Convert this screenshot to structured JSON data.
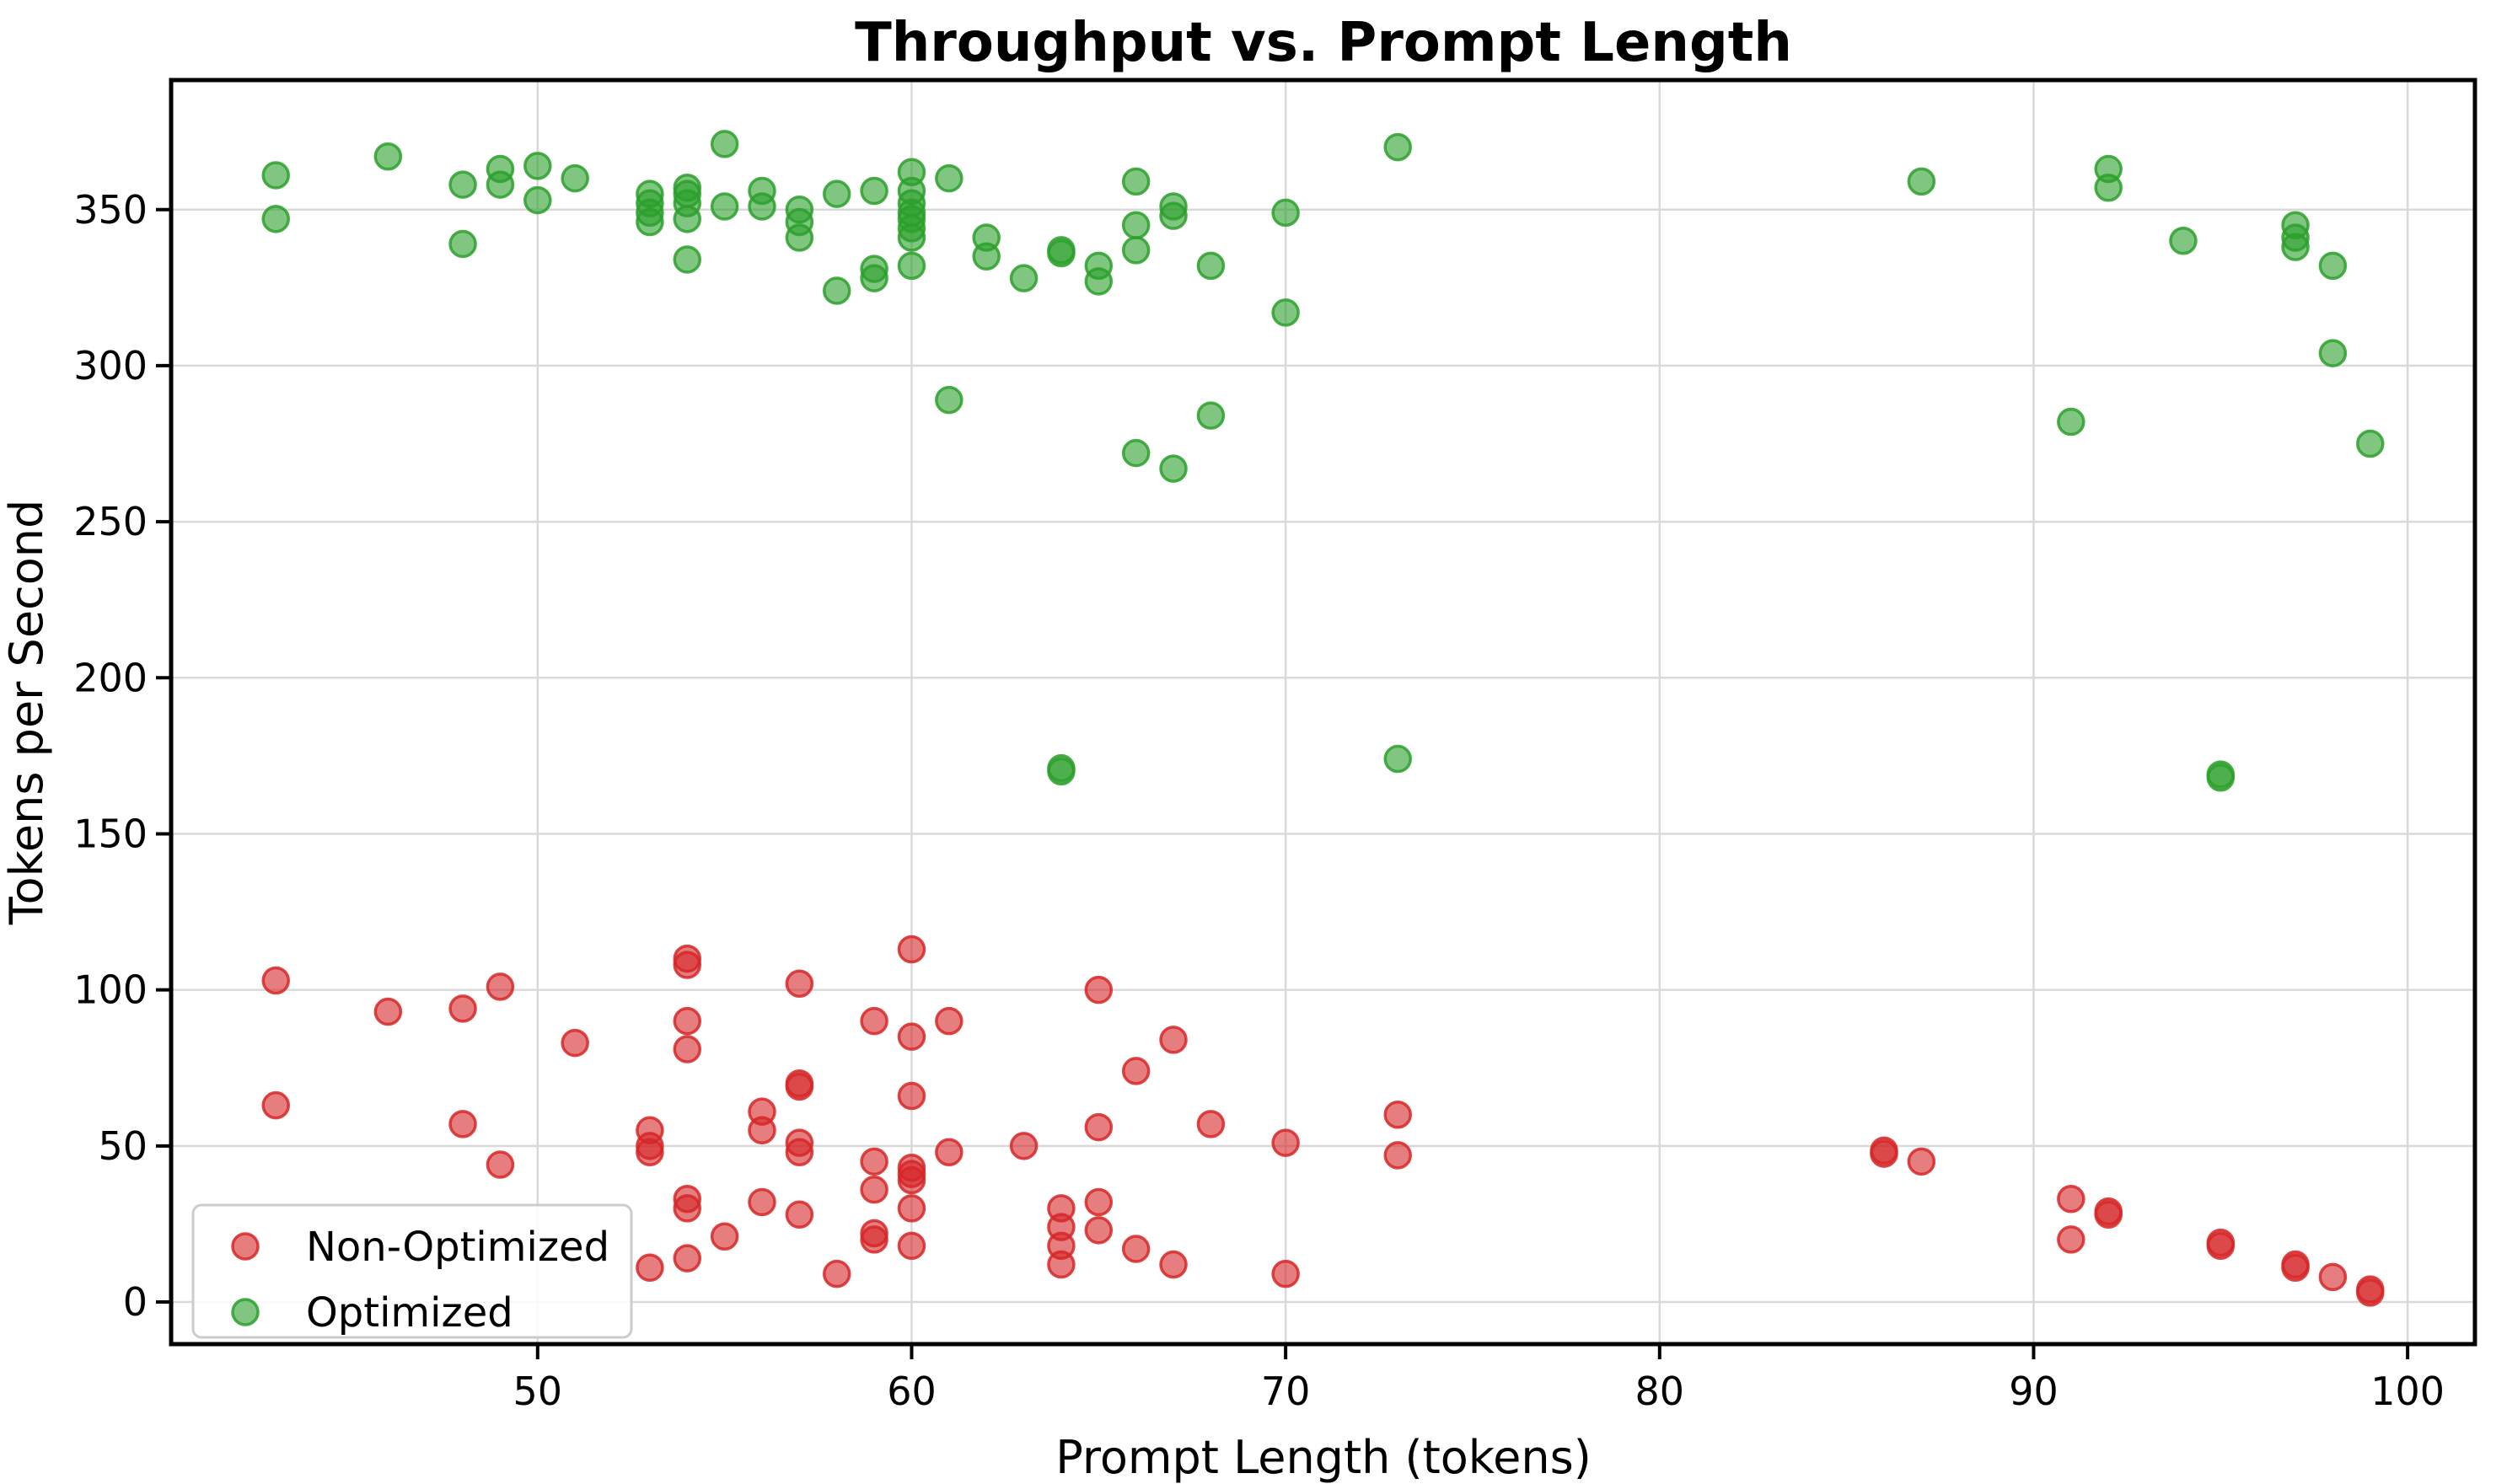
{
  "chart_data": {
    "type": "scatter",
    "title": "Throughput vs. Prompt Length",
    "xlabel": "Prompt Length (tokens)",
    "ylabel": "Tokens per Second",
    "xlim": [
      40.2,
      101.8
    ],
    "ylim": [
      -13.5,
      391.5
    ],
    "x_ticks": [
      50,
      60,
      70,
      80,
      90,
      100
    ],
    "y_ticks": [
      0,
      50,
      100,
      150,
      200,
      250,
      300,
      350
    ],
    "grid": true,
    "legend_position": "lower left",
    "series": [
      {
        "name": "Non-Optimized",
        "color": "#d62728",
        "points": [
          [
            43,
            103
          ],
          [
            43,
            63
          ],
          [
            46,
            93
          ],
          [
            48,
            94
          ],
          [
            48,
            57
          ],
          [
            49,
            101
          ],
          [
            49,
            44
          ],
          [
            51,
            83
          ],
          [
            53,
            55
          ],
          [
            53,
            50
          ],
          [
            53,
            48
          ],
          [
            53,
            11
          ],
          [
            54,
            110
          ],
          [
            54,
            108
          ],
          [
            54,
            90
          ],
          [
            54,
            81
          ],
          [
            54,
            33
          ],
          [
            54,
            30
          ],
          [
            54,
            14
          ],
          [
            55,
            21
          ],
          [
            56,
            61
          ],
          [
            56,
            55
          ],
          [
            56,
            32
          ],
          [
            57,
            102
          ],
          [
            57,
            70
          ],
          [
            57,
            69
          ],
          [
            57,
            51
          ],
          [
            57,
            48
          ],
          [
            57,
            28
          ],
          [
            58,
            9
          ],
          [
            59,
            90
          ],
          [
            59,
            45
          ],
          [
            59,
            36
          ],
          [
            59,
            22
          ],
          [
            59,
            20
          ],
          [
            60,
            113
          ],
          [
            60,
            85
          ],
          [
            60,
            66
          ],
          [
            60,
            43
          ],
          [
            60,
            41
          ],
          [
            60,
            39
          ],
          [
            60,
            30
          ],
          [
            60,
            18
          ],
          [
            61,
            90
          ],
          [
            61,
            48
          ],
          [
            63,
            50
          ],
          [
            64,
            30
          ],
          [
            64,
            24
          ],
          [
            64,
            18
          ],
          [
            64,
            12
          ],
          [
            65,
            100
          ],
          [
            65,
            56
          ],
          [
            65,
            32
          ],
          [
            65,
            23
          ],
          [
            66,
            74
          ],
          [
            66,
            17
          ],
          [
            67,
            84
          ],
          [
            67,
            12
          ],
          [
            68,
            57
          ],
          [
            70,
            51
          ],
          [
            70,
            9
          ],
          [
            73,
            60
          ],
          [
            73,
            47
          ],
          [
            86,
            48.5
          ],
          [
            86,
            47.5
          ],
          [
            87,
            45
          ],
          [
            91,
            33
          ],
          [
            91,
            20
          ],
          [
            92,
            29
          ],
          [
            92,
            28
          ],
          [
            95,
            19
          ],
          [
            95,
            18
          ],
          [
            97,
            12
          ],
          [
            97,
            11
          ],
          [
            98,
            8
          ],
          [
            99,
            4
          ],
          [
            99,
            3
          ]
        ]
      },
      {
        "name": "Optimized",
        "color": "#2ca02c",
        "points": [
          [
            43,
            361
          ],
          [
            43,
            347
          ],
          [
            46,
            367
          ],
          [
            48,
            358
          ],
          [
            48,
            339
          ],
          [
            49,
            363
          ],
          [
            49,
            358
          ],
          [
            50,
            364
          ],
          [
            50,
            353
          ],
          [
            51,
            360
          ],
          [
            53,
            355
          ],
          [
            53,
            352
          ],
          [
            53,
            349
          ],
          [
            53,
            346
          ],
          [
            54,
            357
          ],
          [
            54,
            355
          ],
          [
            54,
            352
          ],
          [
            54,
            347
          ],
          [
            54,
            334
          ],
          [
            55,
            371
          ],
          [
            55,
            351
          ],
          [
            56,
            356
          ],
          [
            56,
            351
          ],
          [
            57,
            350
          ],
          [
            57,
            346
          ],
          [
            57,
            341
          ],
          [
            58,
            355
          ],
          [
            58,
            324
          ],
          [
            59,
            356
          ],
          [
            59,
            331
          ],
          [
            59,
            328
          ],
          [
            60,
            362
          ],
          [
            60,
            356
          ],
          [
            60,
            352
          ],
          [
            60,
            349
          ],
          [
            60,
            347
          ],
          [
            60,
            344
          ],
          [
            60,
            341
          ],
          [
            60,
            332
          ],
          [
            61,
            360
          ],
          [
            61,
            289
          ],
          [
            62,
            341
          ],
          [
            62,
            335
          ],
          [
            63,
            328
          ],
          [
            64,
            337
          ],
          [
            64,
            336
          ],
          [
            64,
            171
          ],
          [
            64,
            170
          ],
          [
            65,
            332
          ],
          [
            65,
            327
          ],
          [
            66,
            359
          ],
          [
            66,
            345
          ],
          [
            66,
            337
          ],
          [
            66,
            272
          ],
          [
            67,
            351
          ],
          [
            67,
            348
          ],
          [
            67,
            267
          ],
          [
            68,
            332
          ],
          [
            68,
            284
          ],
          [
            70,
            349
          ],
          [
            70,
            317
          ],
          [
            73,
            370
          ],
          [
            73,
            174
          ],
          [
            87,
            359
          ],
          [
            91,
            282
          ],
          [
            92,
            363
          ],
          [
            92,
            357
          ],
          [
            94,
            340
          ],
          [
            95,
            168
          ],
          [
            95,
            169
          ],
          [
            97,
            345
          ],
          [
            97,
            341
          ],
          [
            97,
            338
          ],
          [
            98,
            332
          ],
          [
            98,
            304
          ],
          [
            99,
            275
          ]
        ]
      }
    ]
  },
  "legend": {
    "items": [
      {
        "label": "Non-Optimized",
        "color": "#d62728"
      },
      {
        "label": "Optimized",
        "color": "#2ca02c"
      }
    ]
  },
  "style": {
    "marker_radius": 15,
    "fill_opacity": 0.6,
    "stroke_opacity": 0.85,
    "stroke_width": 3.5,
    "grid_color": "#d9d9d9",
    "grid_width": 2.5,
    "spine_color": "#000000",
    "spine_width": 5,
    "tick_color": "#000000",
    "tick_length": 18,
    "tick_width": 4,
    "legend_border_color": "#cccccc",
    "background": "#ffffff"
  }
}
